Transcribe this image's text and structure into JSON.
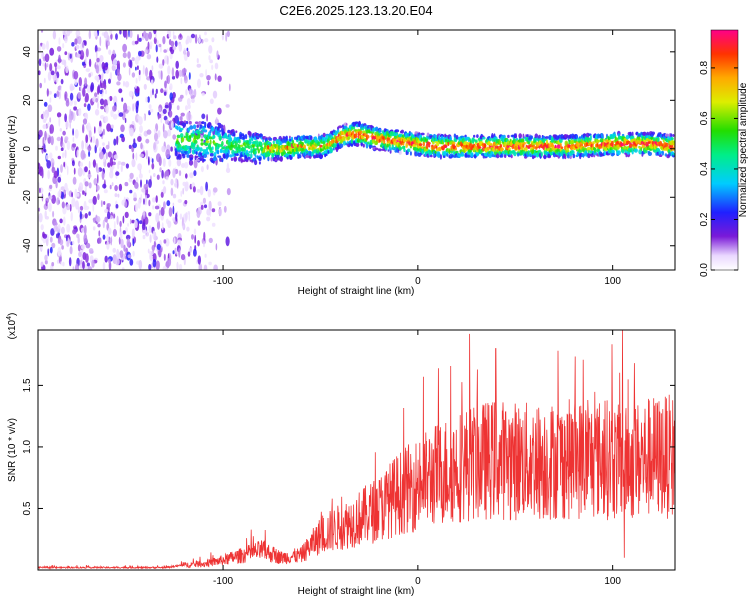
{
  "title": "C2E6.2025.123.13.20.E04",
  "chart_data": [
    {
      "type": "heatmap",
      "name": "spectrogram",
      "xlabel": "Height of straight line (km)",
      "ylabel": "Frequency (Hz)",
      "xlim": [
        -195,
        132
      ],
      "ylim": [
        -50,
        49
      ],
      "xticks": [
        -100,
        0,
        100
      ],
      "yticks": [
        -40,
        -20,
        0,
        20,
        40
      ],
      "xtick_labels": [
        "-100",
        "0",
        "100"
      ],
      "ytick_labels": [
        "-40",
        "-20",
        "0",
        "20",
        "40"
      ],
      "ridge": {
        "x": [
          -122,
          -110,
          -100,
          -90,
          -80,
          -70,
          -60,
          -50,
          -45,
          -40,
          -35,
          -30,
          -20,
          -10,
          0,
          10,
          20,
          40,
          60,
          80,
          100,
          120,
          132
        ],
        "y": [
          4,
          3,
          2,
          1,
          0,
          0,
          1,
          1,
          2,
          5,
          6,
          6,
          4,
          3,
          2,
          1,
          1,
          1,
          1,
          1,
          2,
          2,
          1
        ]
      },
      "colorbar": {
        "label": "Normalized spectral amplitude",
        "range": [
          0,
          0.95
        ],
        "ticks": [
          0.0,
          0.2,
          0.4,
          0.6,
          0.8
        ],
        "tick_labels": [
          "0.0",
          "0.2",
          "0.4",
          "0.6",
          "0.8"
        ]
      }
    },
    {
      "type": "line",
      "name": "snr",
      "xlabel": "Height of straight line (km)",
      "ylabel": "SNR (10 * v/v)",
      "multiplier": "(x10",
      "multiplier_exp": "4",
      "multiplier_close": ")",
      "color": "#ee3333",
      "xlim": [
        -195,
        132
      ],
      "ylim": [
        0,
        1.95
      ],
      "xticks": [
        -100,
        0,
        100
      ],
      "xtick_labels": [
        "-100",
        "0",
        "100"
      ],
      "yticks": [
        0.5,
        1.0,
        1.5
      ],
      "ytick_labels": [
        "0.5",
        "1.0",
        "1.5"
      ],
      "envelope": {
        "x": [
          -195,
          -130,
          -120,
          -110,
          -100,
          -90,
          -80,
          -70,
          -60,
          -50,
          -40,
          -30,
          -20,
          -10,
          0,
          10,
          20,
          30,
          40,
          60,
          80,
          100,
          105,
          110,
          120,
          132
        ],
        "y": [
          0.02,
          0.02,
          0.04,
          0.05,
          0.08,
          0.12,
          0.16,
          0.1,
          0.12,
          0.28,
          0.35,
          0.42,
          0.5,
          0.62,
          0.7,
          0.78,
          0.84,
          0.88,
          0.9,
          0.88,
          0.9,
          0.9,
          0.85,
          0.88,
          0.92,
          0.92
        ]
      },
      "spikes": [
        {
          "x": -44,
          "y": 0.58
        },
        {
          "x": 40,
          "y": 1.8
        },
        {
          "x": 105,
          "y": 1.95
        },
        {
          "x": 106,
          "y": 0.1
        }
      ]
    }
  ]
}
